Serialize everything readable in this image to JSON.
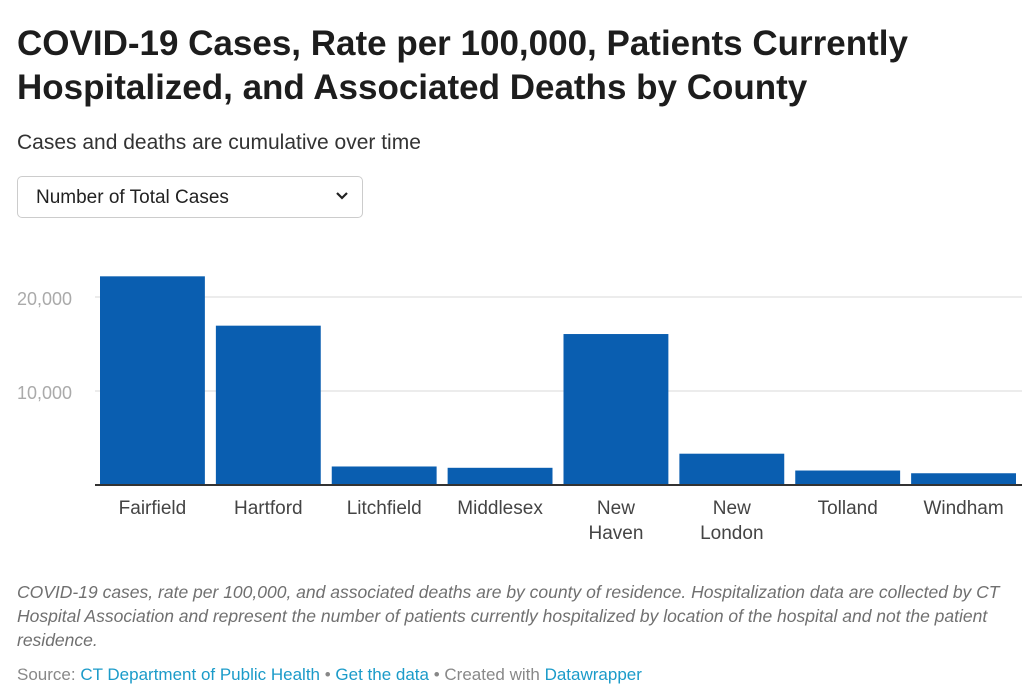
{
  "title": "COVID-19 Cases, Rate per 100,000, Patients Currently Hospitalized, and Associated Deaths by County",
  "subtitle": "Cases and deaths are cumulative over time",
  "dropdown": {
    "selected": "Number of Total Cases",
    "icon": "chevron-down-icon"
  },
  "chart_data": {
    "type": "bar",
    "categories": [
      "Fairfield",
      "Hartford",
      "Litchfield",
      "Middlesex",
      "New Haven",
      "New London",
      "Tolland",
      "Windham"
    ],
    "category_lines": [
      [
        "Fairfield"
      ],
      [
        "Hartford"
      ],
      [
        "Litchfield"
      ],
      [
        "Middlesex"
      ],
      [
        "New",
        "Haven"
      ],
      [
        "New",
        "London"
      ],
      [
        "Tolland"
      ],
      [
        "Windham"
      ]
    ],
    "values": [
      22200,
      16950,
      1970,
      1830,
      16060,
      3330,
      1540,
      1250
    ],
    "yticks": [
      10000,
      20000
    ],
    "ytick_labels": [
      "10,000",
      "20,000"
    ],
    "ylim": [
      0,
      23000
    ],
    "grid": true,
    "bar_color": "#0a5eb0"
  },
  "notes": "COVID-19 cases, rate per 100,000, and associated deaths are by county of residence. Hospitalization data are collected by CT Hospital Association and represent the number of patients currently hospitalized by location of the hospital and not the patient residence.",
  "source": {
    "label": "Source:",
    "source_link": "CT Department of Public Health",
    "sep": " • ",
    "get_data": "Get the data",
    "created_with": "Created with",
    "datawrapper": "Datawrapper"
  }
}
